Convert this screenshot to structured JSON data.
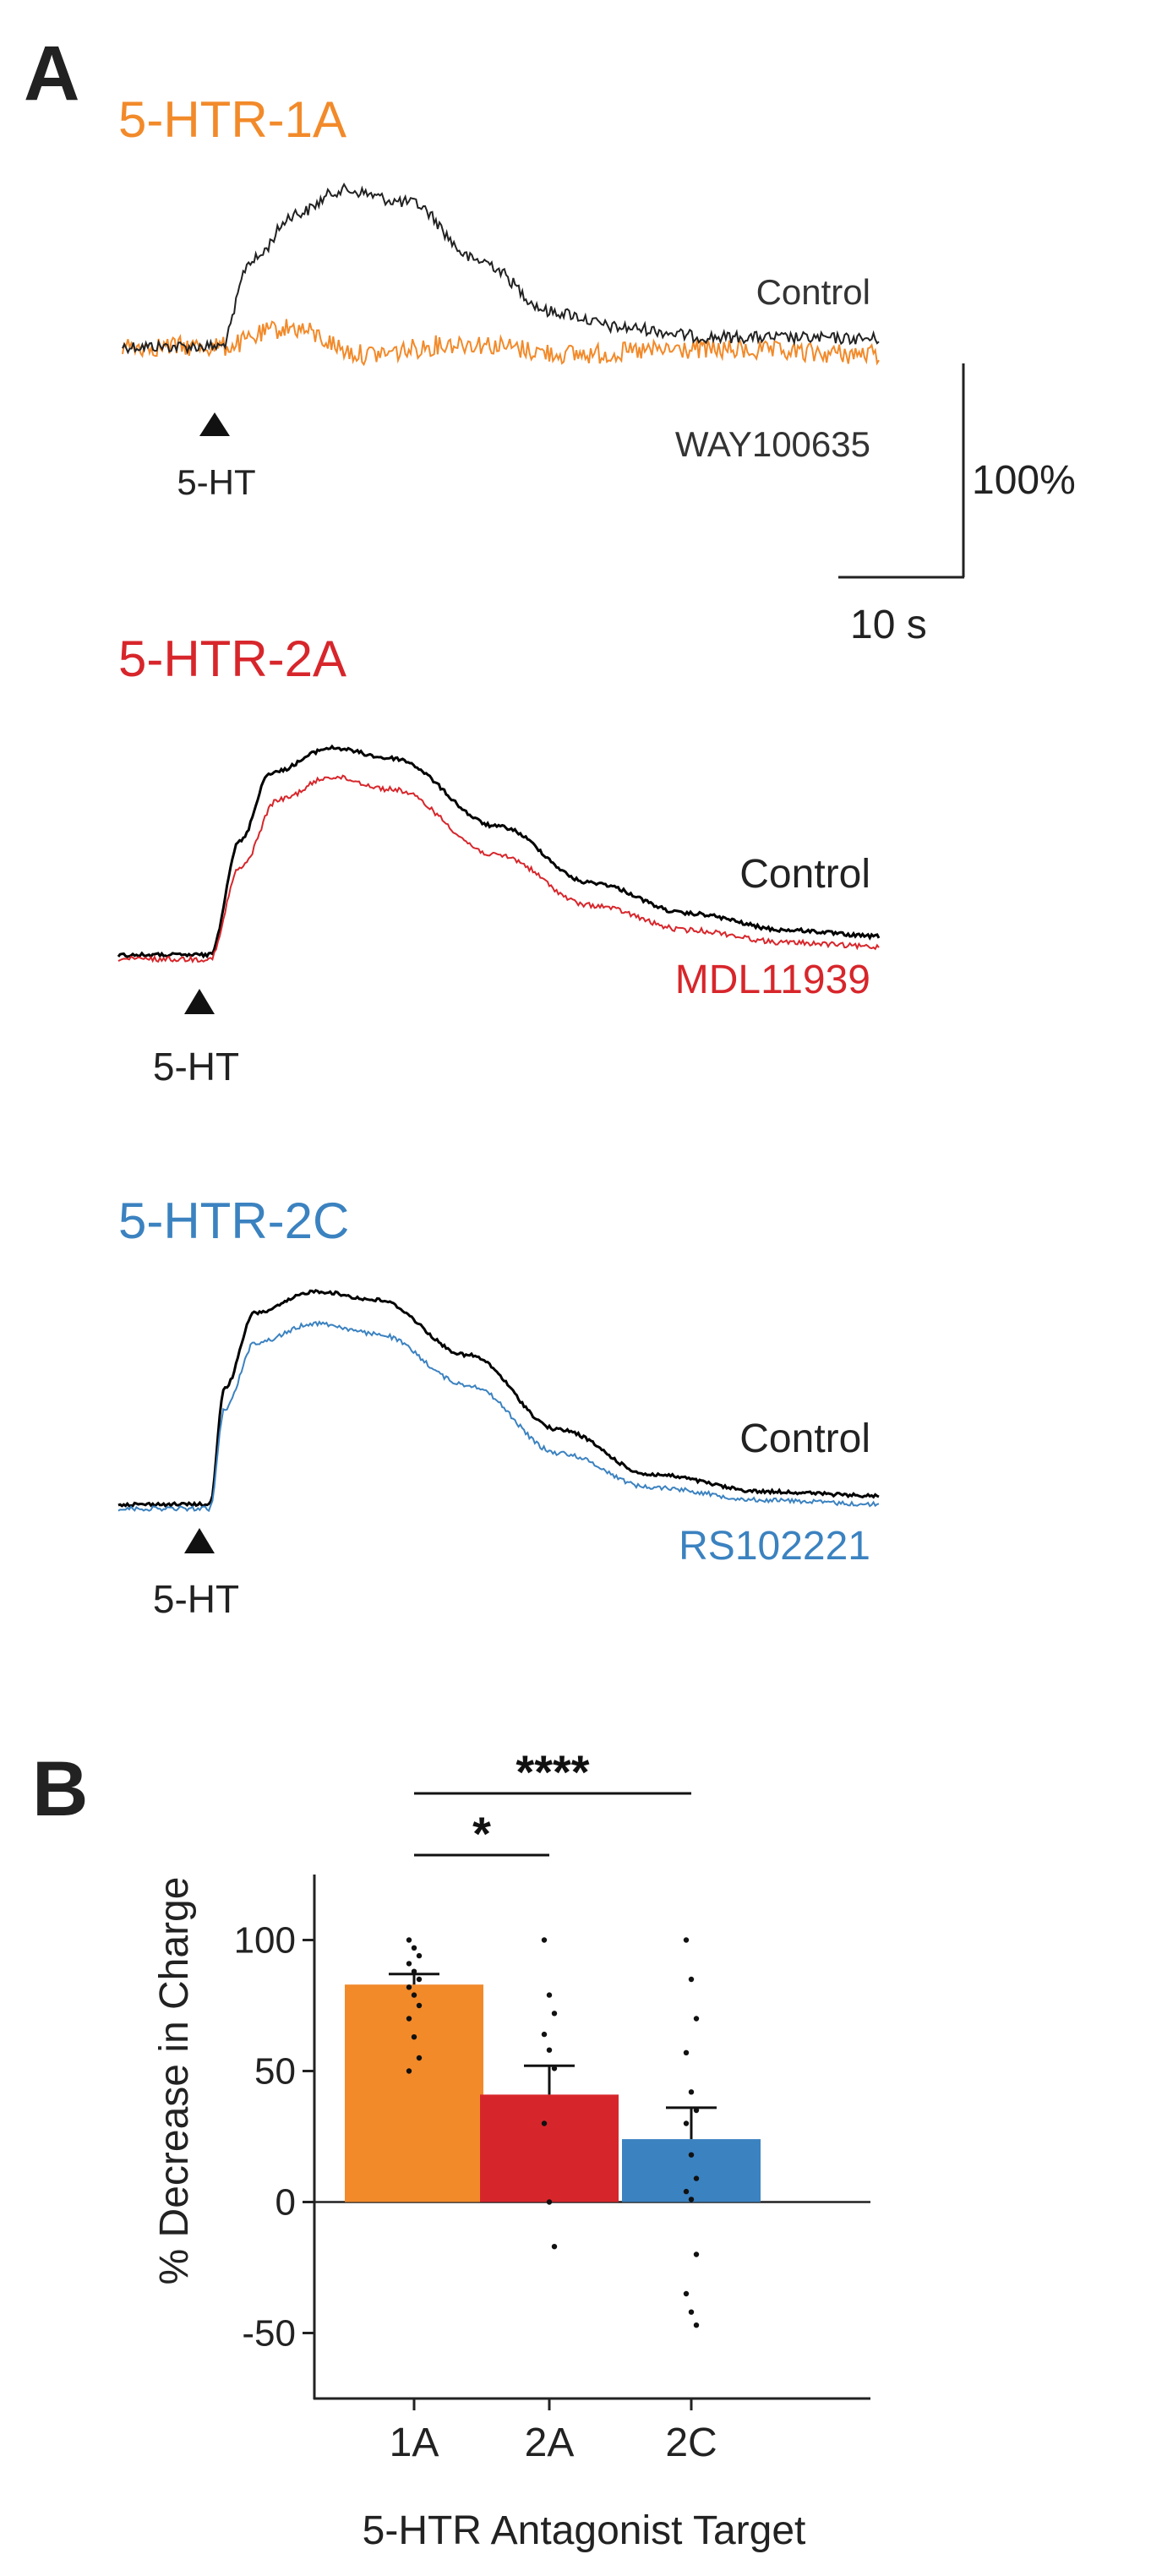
{
  "panel_a": {
    "letter": "A",
    "traces": [
      {
        "title": "5-HTR-1A",
        "title_color": "#f28a2a",
        "control_label": "Control",
        "antagonist_label": "WAY100635",
        "antagonist_label_color": "#333333",
        "antagonist_color": "#f28a2a",
        "control_color": "#222222",
        "stimulus_label": "5-HT",
        "control_shape": [
          [
            0,
            0.0
          ],
          [
            0.13,
            0.0
          ],
          [
            0.17,
            0.55
          ],
          [
            0.23,
            0.85
          ],
          [
            0.29,
            1.0
          ],
          [
            0.38,
            0.92
          ],
          [
            0.47,
            0.55
          ],
          [
            0.57,
            0.22
          ],
          [
            0.66,
            0.12
          ],
          [
            0.78,
            0.06
          ],
          [
            1.0,
            0.05
          ]
        ],
        "antagonist_shape": [
          [
            0,
            0.0
          ],
          [
            0.13,
            0.0
          ],
          [
            0.22,
            0.12
          ],
          [
            0.32,
            -0.05
          ],
          [
            0.45,
            0.02
          ],
          [
            0.6,
            -0.05
          ],
          [
            0.75,
            -0.02
          ],
          [
            1.0,
            -0.05
          ]
        ]
      },
      {
        "title": "5-HTR-2A",
        "title_color": "#d7262b",
        "control_label": "Control",
        "antagonist_label": "MDL11939",
        "antagonist_label_color": "#d7262b",
        "antagonist_color": "#d7262b",
        "control_color": "#000000",
        "stimulus_label": "5-HT",
        "control_shape": [
          [
            0,
            0.0
          ],
          [
            0.12,
            0.0
          ],
          [
            0.16,
            0.55
          ],
          [
            0.2,
            0.88
          ],
          [
            0.28,
            1.0
          ],
          [
            0.36,
            0.95
          ],
          [
            0.5,
            0.62
          ],
          [
            0.62,
            0.35
          ],
          [
            0.75,
            0.2
          ],
          [
            0.88,
            0.12
          ],
          [
            1.0,
            0.09
          ]
        ],
        "antagonist_shape": [
          [
            0,
            -0.02
          ],
          [
            0.12,
            -0.02
          ],
          [
            0.16,
            0.42
          ],
          [
            0.21,
            0.75
          ],
          [
            0.28,
            0.86
          ],
          [
            0.36,
            0.8
          ],
          [
            0.5,
            0.48
          ],
          [
            0.62,
            0.24
          ],
          [
            0.75,
            0.12
          ],
          [
            0.88,
            0.06
          ],
          [
            1.0,
            0.04
          ]
        ]
      },
      {
        "title": "5-HTR-2C",
        "title_color": "#3b82c0",
        "control_label": "Control",
        "antagonist_label": "RS102221",
        "antagonist_label_color": "#3b82c0",
        "antagonist_color": "#3b82c0",
        "control_color": "#000000",
        "stimulus_label": "5-HT",
        "control_shape": [
          [
            0,
            0.0
          ],
          [
            0.12,
            0.0
          ],
          [
            0.14,
            0.55
          ],
          [
            0.18,
            0.9
          ],
          [
            0.26,
            1.0
          ],
          [
            0.34,
            0.96
          ],
          [
            0.46,
            0.7
          ],
          [
            0.58,
            0.35
          ],
          [
            0.7,
            0.14
          ],
          [
            0.85,
            0.06
          ],
          [
            1.0,
            0.04
          ]
        ],
        "antagonist_shape": [
          [
            0,
            -0.02
          ],
          [
            0.12,
            -0.02
          ],
          [
            0.14,
            0.45
          ],
          [
            0.18,
            0.76
          ],
          [
            0.26,
            0.85
          ],
          [
            0.34,
            0.8
          ],
          [
            0.46,
            0.56
          ],
          [
            0.58,
            0.24
          ],
          [
            0.7,
            0.08
          ],
          [
            0.85,
            0.02
          ],
          [
            1.0,
            0.0
          ]
        ]
      }
    ],
    "scale_bar": {
      "amplitude": "100%",
      "time": "10 s"
    }
  },
  "chart_data": {
    "type": "bar",
    "panel_letter": "B",
    "categories": [
      "1A",
      "2A",
      "2C"
    ],
    "values": [
      83,
      41,
      24
    ],
    "errors": [
      4,
      11,
      12
    ],
    "colors": [
      "#f28a2a",
      "#d7262b",
      "#3b82c0"
    ],
    "points": [
      [
        100,
        97,
        94,
        91,
        88,
        85,
        82,
        79,
        75,
        70,
        63,
        55,
        50
      ],
      [
        100,
        79,
        72,
        64,
        58,
        51,
        30,
        0,
        -17
      ],
      [
        100,
        85,
        70,
        57,
        42,
        35,
        30,
        18,
        9,
        4,
        1,
        -20,
        -35,
        -42,
        -47
      ]
    ],
    "xlabel": "5-HTR Antagonist Target",
    "ylabel": "% Decrease in Charge",
    "ylim": [
      -75,
      125
    ],
    "yticks": [
      -50,
      0,
      50,
      100
    ],
    "significance": [
      {
        "from": "1A",
        "to": "2A",
        "label": "*"
      },
      {
        "from": "1A",
        "to": "2C",
        "label": "****"
      }
    ]
  }
}
